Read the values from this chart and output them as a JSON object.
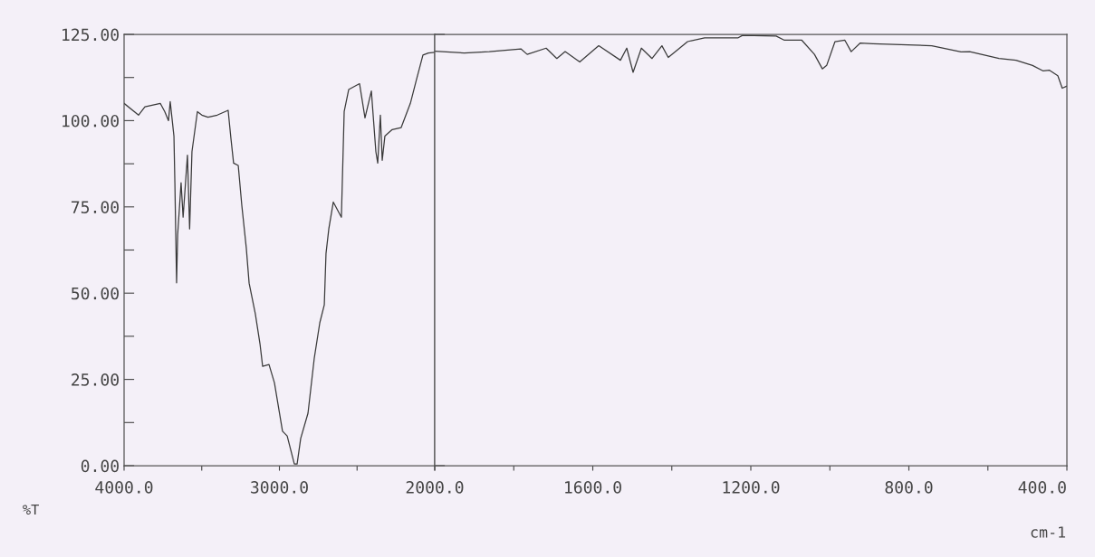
{
  "chart_data": [
    {
      "type": "line",
      "xlabel": null,
      "ylabel": "%T",
      "color": "#3a3a3a",
      "x": [
        4000,
        3907,
        3866,
        3767,
        3738,
        3714,
        3703,
        3679,
        3673,
        3662,
        3655,
        3633,
        3620,
        3592,
        3578,
        3563,
        3528,
        3499,
        3460,
        3400,
        3330,
        3312,
        3295,
        3265,
        3242,
        3213,
        3195,
        3155,
        3125,
        3108,
        3067,
        3032,
        2980,
        2950,
        2904,
        2886,
        2863,
        2816,
        2776,
        2740,
        2711,
        2700,
        2682,
        2653,
        2601,
        2583,
        2554,
        2484,
        2449,
        2408,
        2379,
        2367,
        2350,
        2338,
        2321,
        2274,
        2216,
        2157,
        2117,
        2076,
        2041,
        2000
      ],
      "values": [
        105,
        101.6,
        104,
        105,
        102.6,
        100,
        105.5,
        95.5,
        82,
        53,
        67,
        82,
        72,
        90,
        68.6,
        91,
        102.6,
        101.6,
        101,
        101.6,
        103,
        94.8,
        87.7,
        87,
        75.4,
        63,
        52.9,
        44,
        35.3,
        28.8,
        29.3,
        24,
        10,
        8.6,
        0.5,
        0.5,
        7.9,
        15.2,
        31,
        41.4,
        46.6,
        61.5,
        68.6,
        76.4,
        72,
        102.6,
        109,
        110.7,
        100.8,
        108.6,
        91,
        87.7,
        101.6,
        88.5,
        95.5,
        97.4,
        98,
        105,
        112,
        119,
        119.6,
        119.8
      ],
      "xlim": [
        4000,
        2000
      ],
      "xticks": [
        {
          "value": 4000,
          "label": "4000.0"
        },
        {
          "value": 3500,
          "label": null
        },
        {
          "value": 3000,
          "label": "3000.0"
        },
        {
          "value": 2500,
          "label": null
        },
        {
          "value": 2000,
          "label": "2000.0"
        }
      ],
      "ylim": [
        0,
        125
      ],
      "yticks": [
        {
          "value": 0,
          "label": "0.00"
        },
        {
          "value": 12.5,
          "label": null
        },
        {
          "value": 25,
          "label": "25.00"
        },
        {
          "value": 37.5,
          "label": null
        },
        {
          "value": 50,
          "label": "50.00"
        },
        {
          "value": 62.5,
          "label": null
        },
        {
          "value": 75,
          "label": "75.00"
        },
        {
          "value": 87.5,
          "label": null
        },
        {
          "value": 100,
          "label": "100.00"
        },
        {
          "value": 112.5,
          "label": null
        },
        {
          "value": 125,
          "label": "125.00"
        }
      ],
      "grid": false
    },
    {
      "type": "line",
      "xlabel": "cm-1",
      "color": "#3a3a3a",
      "x": [
        2000,
        1925,
        1862,
        1782,
        1766,
        1718,
        1691,
        1670,
        1633,
        1585,
        1530,
        1514,
        1498,
        1477,
        1450,
        1425,
        1409,
        1360,
        1317,
        1296,
        1232,
        1221,
        1136,
        1115,
        1071,
        1039,
        1019,
        1008,
        987,
        962,
        946,
        923,
        891,
        742,
        668,
        646,
        572,
        529,
        487,
        460,
        444,
        423,
        412,
        400
      ],
      "values": [
        120.1,
        119.6,
        120,
        120.8,
        119.2,
        121,
        118,
        120,
        117,
        121.7,
        117.5,
        121,
        114,
        121,
        118,
        121.7,
        118.3,
        122.9,
        124,
        124,
        124,
        124.7,
        124.5,
        123.3,
        123.3,
        119.2,
        115,
        116,
        122.9,
        123.3,
        120,
        122.5,
        122.3,
        121.7,
        119.9,
        120,
        118,
        117.5,
        116,
        114.4,
        114.6,
        113,
        109.4,
        110
      ],
      "xlim": [
        2000,
        400
      ],
      "xticks": [
        {
          "value": 2000,
          "label": null
        },
        {
          "value": 1800,
          "label": null
        },
        {
          "value": 1600,
          "label": "1600.0"
        },
        {
          "value": 1400,
          "label": null
        },
        {
          "value": 1200,
          "label": "1200.0"
        },
        {
          "value": 1000,
          "label": null
        },
        {
          "value": 800,
          "label": "800.0"
        },
        {
          "value": 600,
          "label": null
        },
        {
          "value": 400,
          "label": "400.0"
        }
      ],
      "ylim": [
        0,
        125
      ],
      "yticks": [
        {
          "value": 0,
          "label": null
        },
        {
          "value": 125,
          "label": null
        }
      ],
      "tick_labels": "x",
      "grid": false
    }
  ]
}
